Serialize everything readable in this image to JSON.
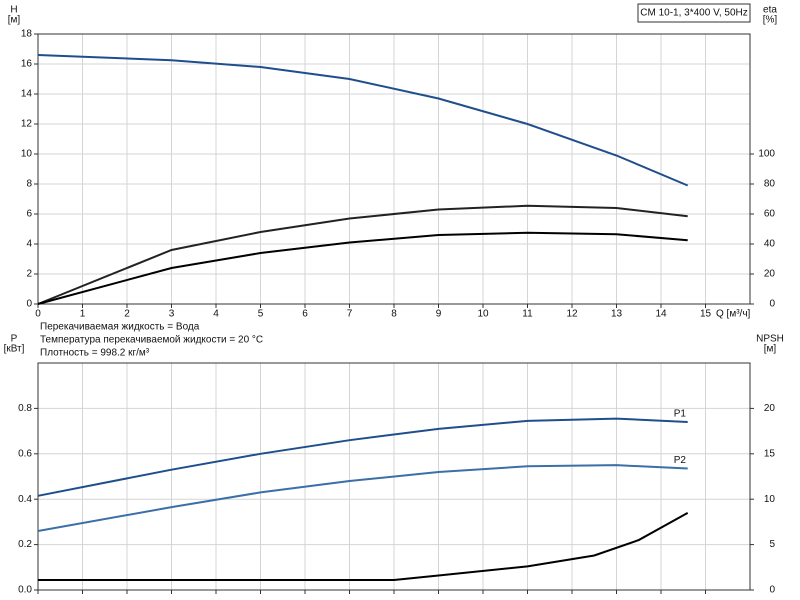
{
  "chart_data": [
    {
      "type": "line",
      "title": "CM 10-1, 3*400 V, 50Hz",
      "y_label": "H",
      "y_unit": "[м]",
      "y2_label": "eta",
      "y2_unit": "[%]",
      "x_label": "Q [м³/ч]",
      "xlim": [
        0,
        16
      ],
      "xticks": [
        0,
        1,
        2,
        3,
        4,
        5,
        6,
        7,
        8,
        9,
        10,
        11,
        12,
        13,
        14,
        15
      ],
      "ylim": [
        0,
        18
      ],
      "yticks": [
        0,
        2,
        4,
        6,
        8,
        10,
        12,
        14,
        16,
        18
      ],
      "y2lim": [
        0,
        180
      ],
      "y2ticks": [
        0,
        20,
        40,
        60,
        80,
        100
      ],
      "grid": true,
      "series": [
        {
          "color": "#1f4e8c",
          "x": [
            0,
            3,
            5,
            7,
            9,
            11,
            13,
            14.6
          ],
          "values": [
            16.6,
            16.25,
            15.8,
            15.0,
            13.7,
            12.0,
            9.9,
            7.9
          ]
        },
        {
          "color": "#222222",
          "axis": "y2",
          "x": [
            0,
            3,
            5,
            7,
            9,
            11,
            13,
            14.6
          ],
          "values": [
            0,
            36,
            48,
            57,
            63,
            65.5,
            64,
            58.5
          ]
        },
        {
          "color": "#000000",
          "axis": "y2",
          "x": [
            0,
            3,
            5,
            7,
            9,
            11,
            13,
            14.6
          ],
          "values": [
            0,
            24,
            34,
            41,
            46,
            47.5,
            46.5,
            42.5
          ]
        }
      ],
      "notes": [
        "Перекачиваемая жидкость = Вода",
        "Температура перекачиваемой жидкости = 20 °C",
        "Плотность = 998.2 кг/м³"
      ]
    },
    {
      "type": "line",
      "y_label": "P",
      "y_unit": "[кВт]",
      "y2_label": "NPSH",
      "y2_unit": "[м]",
      "xlim": [
        0,
        16
      ],
      "xticks": [
        0,
        1,
        2,
        3,
        4,
        5,
        6,
        7,
        8,
        9,
        10,
        11,
        12,
        13,
        14,
        15
      ],
      "ylim": [
        0,
        1
      ],
      "yticks": [
        {
          "value": 0,
          "label": "0.0"
        },
        0.2,
        0.4,
        0.6,
        0.8
      ],
      "y2lim": [
        0,
        25
      ],
      "y2ticks": [
        0,
        5,
        10,
        15,
        20
      ],
      "grid": true,
      "series": [
        {
          "name": "P1",
          "color": "#1f4e8c",
          "x": [
            0,
            3,
            5,
            7,
            9,
            11,
            13,
            14.6
          ],
          "values": [
            0.415,
            0.53,
            0.6,
            0.66,
            0.71,
            0.745,
            0.755,
            0.74
          ]
        },
        {
          "name": "P2",
          "color": "#3a6fa8",
          "x": [
            0,
            3,
            5,
            7,
            9,
            11,
            13,
            14.6
          ],
          "values": [
            0.26,
            0.365,
            0.43,
            0.48,
            0.52,
            0.545,
            0.55,
            0.535
          ]
        },
        {
          "color": "#000000",
          "axis": "y2",
          "x": [
            0,
            3,
            5,
            8,
            9,
            11,
            12.5,
            13.5,
            14.6
          ],
          "values": [
            1.1,
            1.1,
            1.1,
            1.1,
            1.6,
            2.6,
            3.8,
            5.5,
            8.5
          ]
        }
      ]
    }
  ]
}
